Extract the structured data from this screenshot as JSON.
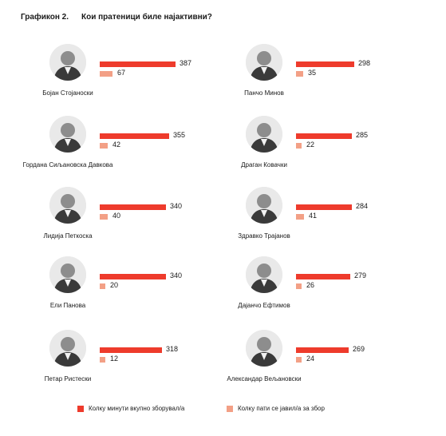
{
  "chart_data": {
    "type": "bar",
    "title_number": "Графикон 2.",
    "title": "Кои пратеници биле најактивни?",
    "series": [
      {
        "name": "Колку минути вкупно зборувал/а",
        "color": "#ee3b2c"
      },
      {
        "name": "Колку пати се јавил/а за збор",
        "color": "#f3a086"
      }
    ],
    "people": [
      {
        "name": "Бојан Стојаноски",
        "minutes": 387,
        "times": 67
      },
      {
        "name": "Гордана Сиљановска Давкова",
        "minutes": 355,
        "times": 42
      },
      {
        "name": "Лидија Петкоска",
        "minutes": 340,
        "times": 40
      },
      {
        "name": "Ели Панова",
        "minutes": 340,
        "times": 20
      },
      {
        "name": "Петар Ристески",
        "minutes": 318,
        "times": 12
      },
      {
        "name": "Панчо Минов",
        "minutes": 298,
        "times": 35
      },
      {
        "name": "Драган Ковачки",
        "minutes": 285,
        "times": 22
      },
      {
        "name": "Здравко Трајанов",
        "minutes": 284,
        "times": 41
      },
      {
        "name": "Дајанчо Ефтимов",
        "minutes": 279,
        "times": 26
      },
      {
        "name": "Александар Вељановски",
        "minutes": 269,
        "times": 24
      }
    ]
  }
}
